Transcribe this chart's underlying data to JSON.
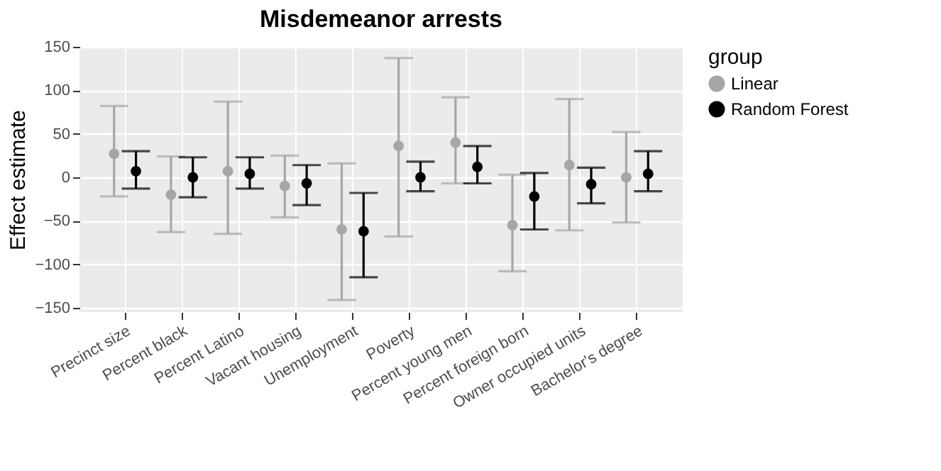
{
  "chart_data": {
    "type": "scatter",
    "title": "Misdemeanor arrests",
    "ylabel": "Effect estimate",
    "legend_title": "group",
    "categories": [
      "Precinct size",
      "Percent black",
      "Percent Latino",
      "Vacant housing",
      "Unemployment",
      "Poverty",
      "Percent young men",
      "Percent foreign born",
      "Owner occupied units",
      "Bachelor's degree"
    ],
    "series": [
      {
        "name": "Linear",
        "color": "#a6a6a6",
        "values": [
          27,
          -20,
          7,
          -10,
          -60,
          36,
          40,
          -55,
          14,
          0
        ],
        "errors": [
          [
            -22,
            82
          ],
          [
            -63,
            24
          ],
          [
            -65,
            87
          ],
          [
            -46,
            25
          ],
          [
            -141,
            16
          ],
          [
            -68,
            137
          ],
          [
            -7,
            92
          ],
          [
            -108,
            3
          ],
          [
            -61,
            90
          ],
          [
            -52,
            52
          ]
        ]
      },
      {
        "name": "Random Forest",
        "color": "#000000",
        "values": [
          7,
          0,
          4,
          -7,
          -62,
          0,
          12,
          -22,
          -8,
          4
        ],
        "errors": [
          [
            -13,
            30
          ],
          [
            -23,
            23
          ],
          [
            -13,
            23
          ],
          [
            -32,
            14
          ],
          [
            -115,
            -18
          ],
          [
            -16,
            18
          ],
          [
            -7,
            36
          ],
          [
            -60,
            5
          ],
          [
            -30,
            11
          ],
          [
            -16,
            30
          ]
        ]
      }
    ],
    "ylim": [
      -155,
      150
    ],
    "yticks": [
      -150,
      -100,
      -50,
      0,
      50,
      100,
      150
    ],
    "grid": true,
    "legend": "right",
    "marker": "circle"
  }
}
